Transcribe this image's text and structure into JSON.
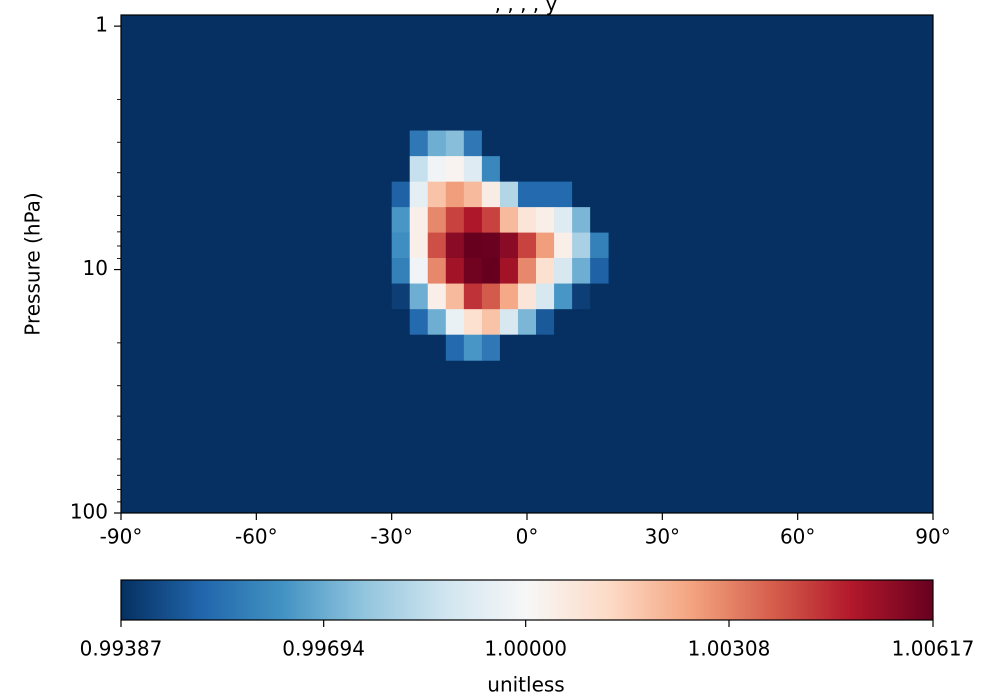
{
  "chart_data": {
    "type": "heatmap",
    "title": ", , , , y",
    "ylabel": "Pressure (hPa)",
    "xlabel": "",
    "colorbar_label": "unitless",
    "x_range": [
      -90,
      90
    ],
    "x_ticks": [
      -90,
      -60,
      -30,
      0,
      30,
      60,
      90
    ],
    "x_tick_labels": [
      "-90°",
      "-60°",
      "-30°",
      "0°",
      "30°",
      "60°",
      "90°"
    ],
    "y_scale": "log",
    "y_range_hpa": [
      100,
      0.9
    ],
    "y_ticks": [
      1,
      10,
      100
    ],
    "y_tick_labels": [
      "1",
      "10",
      "100"
    ],
    "colorbar": {
      "min": 0.99387,
      "max": 1.00617,
      "ticks": [
        0.99387,
        0.99694,
        1.0,
        1.00308,
        1.00617
      ],
      "tick_labels": [
        "0.99387",
        "0.99694",
        "1.00000",
        "1.00308",
        "1.00617"
      ],
      "colormap": "RdBu_r",
      "colors": [
        "#053061",
        "#2166ac",
        "#4393c3",
        "#92c5de",
        "#d1e5f0",
        "#f7f7f7",
        "#fddbc7",
        "#f4a582",
        "#d6604d",
        "#b2182b",
        "#67001f"
      ]
    },
    "grid": false,
    "background_value": 0.99387,
    "cell_size_deg": 4,
    "anomaly": {
      "lat_lo": -30,
      "lat_hi": 18,
      "lat_centers": [
        -28,
        -24,
        -20,
        -16,
        -12,
        -8,
        -4,
        0,
        4,
        8,
        12,
        16
      ],
      "pressure_levels_hpa": [
        3.03,
        3.86,
        4.91,
        6.25,
        7.95,
        10.1,
        12.9,
        16.4,
        20.9
      ],
      "values": [
        [
          0.99387,
          0.9956,
          0.997,
          0.9974,
          0.9956,
          0.99387,
          0.99387,
          0.99387,
          0.99387,
          0.99387,
          0.99387,
          0.99387
        ],
        [
          0.99387,
          0.9986,
          0.9998,
          1.0002,
          0.9992,
          0.996,
          0.99387,
          0.99387,
          0.99387,
          0.99387,
          0.99387,
          0.99387
        ],
        [
          0.995,
          0.9994,
          1.0018,
          1.0026,
          1.002,
          1.0005,
          0.9982,
          0.9952,
          0.9952,
          0.9952,
          0.99387,
          0.99387
        ],
        [
          0.9964,
          1.0004,
          1.003,
          1.0042,
          1.005,
          1.0042,
          1.002,
          1.0008,
          1.0004,
          0.9992,
          0.9972,
          0.99387
        ],
        [
          0.9962,
          1.0004,
          1.004,
          1.0056,
          1.00617,
          1.0061,
          1.0056,
          1.0042,
          1.0026,
          1.0004,
          0.998,
          0.9958
        ],
        [
          0.9958,
          0.9998,
          1.003,
          1.0052,
          1.006,
          1.00617,
          1.0052,
          1.003,
          1.001,
          0.999,
          0.997,
          0.995
        ],
        [
          0.9942,
          0.997,
          1.0004,
          1.002,
          1.0045,
          1.0038,
          1.0024,
          1.0008,
          0.999,
          0.9964,
          0.9942,
          0.99387
        ],
        [
          0.99387,
          0.9952,
          0.997,
          0.9996,
          1.001,
          1.0018,
          0.999,
          0.9972,
          0.9948,
          0.99387,
          0.99387,
          0.99387
        ],
        [
          0.99387,
          0.99387,
          0.99387,
          0.9952,
          0.9964,
          0.9956,
          0.99387,
          0.99387,
          0.99387,
          0.99387,
          0.99387,
          0.99387
        ]
      ]
    }
  }
}
